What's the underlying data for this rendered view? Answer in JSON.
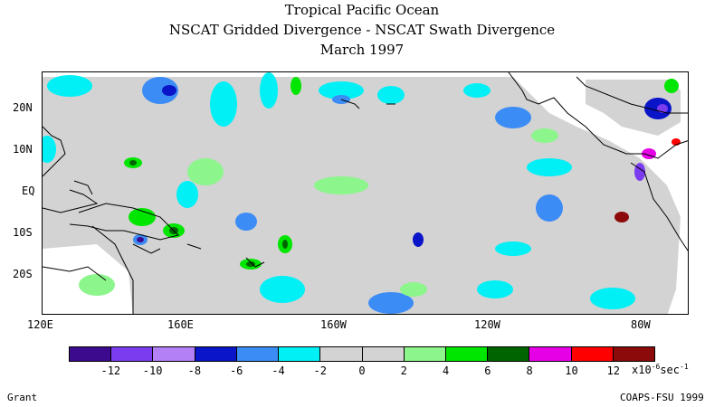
{
  "title": "Tropical Pacific Ocean",
  "subtitle": "NSCAT Gridded Divergence - NSCAT Swath Divergence",
  "date": "March 1997",
  "lat_labels": [
    "20N",
    "10N",
    "EQ",
    "10S",
    "20S"
  ],
  "lon_labels": [
    "120E",
    "160E",
    "160W",
    "120W",
    "80W"
  ],
  "colorbar": {
    "colors": [
      "#3c0a8c",
      "#7b3cf0",
      "#b480f5",
      "#0a14c8",
      "#3c8cf5",
      "#00f0f5",
      "#d3d3d3",
      "#d3d3d3",
      "#8cf58c",
      "#00e600",
      "#006400",
      "#e600e6",
      "#ff0000",
      "#8c0a0a"
    ],
    "tick_labels": [
      "-12",
      "-10",
      "-8",
      "-6",
      "-4",
      "-2",
      "0",
      "2",
      "4",
      "6",
      "8",
      "10",
      "12"
    ],
    "units_prefix": "x10",
    "units_exp1": "-6",
    "units_mid": "sec",
    "units_exp2": "-1"
  },
  "author": "Grant",
  "credit": "COAPS-FSU 1999"
}
